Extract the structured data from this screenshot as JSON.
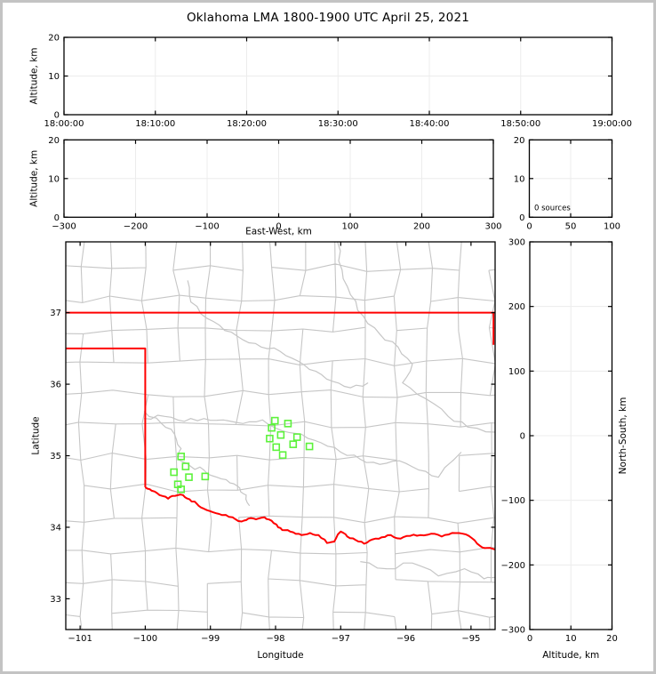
{
  "title": "Oklahoma LMA 1800-1900 UTC April 25, 2021",
  "colors": {
    "background": "#ffffff",
    "frame": "#c3c3c3",
    "axis": "#000000",
    "grid": "#ececec",
    "county": "#c6c6c6",
    "river": "#c6c6c6",
    "state_border": "#ff0000",
    "station": "#5df23c"
  },
  "chart_data": [
    {
      "id": "time-height-panel",
      "type": "scatter",
      "description": "Source altitude vs time, empty (0 sources)",
      "xlim": [
        0,
        3600
      ],
      "xticks": {
        "values": [
          0,
          600,
          1200,
          1800,
          2400,
          3000,
          3600
        ],
        "labels": [
          "18:00:00",
          "18:10:00",
          "18:20:00",
          "18:30:00",
          "18:40:00",
          "18:50:00",
          "19:00:00"
        ]
      },
      "ylabel": "Altitude, km",
      "ylim": [
        0,
        20
      ],
      "yticks": {
        "values": [
          0,
          10,
          20
        ],
        "labels": [
          "0",
          "10",
          "20"
        ]
      },
      "points": []
    },
    {
      "id": "ew-height-panel",
      "type": "scatter",
      "description": "Source altitude vs east-west distance, empty",
      "xlabel": "East-West, km",
      "xlim": [
        -300,
        300
      ],
      "xticks": {
        "values": [
          -300,
          -200,
          -100,
          0,
          100,
          200,
          300
        ],
        "labels": [
          "−300",
          "−200",
          "−100",
          "0",
          "100",
          "200",
          "300"
        ]
      },
      "ylabel": "Altitude, km",
      "ylim": [
        0,
        20
      ],
      "yticks": {
        "values": [
          0,
          10,
          20
        ],
        "labels": [
          "0",
          "10",
          "20"
        ]
      },
      "points": []
    },
    {
      "id": "altitude-histogram-panel",
      "type": "histogram",
      "description": "Altitude histogram of sources, empty",
      "annotation": "0 sources",
      "xlim": [
        0,
        100
      ],
      "xticks": {
        "values": [
          0,
          50,
          100
        ],
        "labels": [
          "0",
          "50",
          "100"
        ]
      },
      "ylim": [
        0,
        20
      ],
      "yticks": {
        "values": [
          0,
          10,
          20
        ],
        "labels": [
          "0",
          "10",
          "20"
        ]
      },
      "values": []
    },
    {
      "id": "plan-view-map-panel",
      "type": "map-scatter",
      "description": "Plan view map of Oklahoma with LMA station locations",
      "xlabel": "Longitude",
      "ylabel": "Latitude",
      "xlim": [
        -101.22,
        -94.63
      ],
      "ylim": [
        32.57,
        37.99
      ],
      "xticks": {
        "values": [
          -101,
          -100,
          -99,
          -98,
          -97,
          -96,
          -95
        ],
        "labels": [
          "−101",
          "−100",
          "−99",
          "−98",
          "−97",
          "−96",
          "−95"
        ]
      },
      "yticks": {
        "values": [
          33,
          34,
          35,
          36,
          37
        ],
        "labels": [
          "33",
          "34",
          "35",
          "36",
          "37"
        ]
      },
      "stations": [
        [
          -98.01,
          35.49
        ],
        [
          -97.81,
          35.45
        ],
        [
          -98.06,
          35.39
        ],
        [
          -97.92,
          35.29
        ],
        [
          -98.09,
          35.24
        ],
        [
          -97.67,
          35.26
        ],
        [
          -97.99,
          35.12
        ],
        [
          -97.73,
          35.16
        ],
        [
          -97.48,
          35.13
        ],
        [
          -97.89,
          35.01
        ],
        [
          -99.45,
          34.99
        ],
        [
          -99.38,
          34.85
        ],
        [
          -99.56,
          34.77
        ],
        [
          -99.33,
          34.7
        ],
        [
          -99.08,
          34.71
        ],
        [
          -99.5,
          34.6
        ],
        [
          -99.45,
          34.53
        ]
      ],
      "state_border": {
        "kansas_border": [
          [
            -101.22,
            37.0
          ],
          [
            -94.63,
            37.0
          ]
        ],
        "missouri_border": [
          [
            -94.655,
            37.0
          ],
          [
            -94.655,
            36.55
          ]
        ],
        "panhandle_border": [
          [
            -101.22,
            36.5
          ],
          [
            -100.0,
            36.5
          ],
          [
            -100.0,
            34.56
          ]
        ],
        "red_river_border": [
          [
            -100.0,
            34.56
          ],
          [
            -99.9,
            34.51
          ],
          [
            -99.78,
            34.45
          ],
          [
            -99.65,
            34.4
          ],
          [
            -99.54,
            34.44
          ],
          [
            -99.42,
            34.45
          ],
          [
            -99.32,
            34.39
          ],
          [
            -99.21,
            34.33
          ],
          [
            -99.1,
            34.26
          ],
          [
            -98.96,
            34.21
          ],
          [
            -98.82,
            34.17
          ],
          [
            -98.66,
            34.14
          ],
          [
            -98.52,
            34.08
          ],
          [
            -98.42,
            34.12
          ],
          [
            -98.3,
            34.11
          ],
          [
            -98.17,
            34.14
          ],
          [
            -98.06,
            34.09
          ],
          [
            -97.96,
            34.0
          ],
          [
            -97.86,
            33.96
          ],
          [
            -97.73,
            33.93
          ],
          [
            -97.6,
            33.89
          ],
          [
            -97.47,
            33.92
          ],
          [
            -97.34,
            33.89
          ],
          [
            -97.21,
            33.78
          ],
          [
            -97.1,
            33.8
          ],
          [
            -97.0,
            33.94
          ],
          [
            -96.9,
            33.87
          ],
          [
            -96.77,
            33.82
          ],
          [
            -96.64,
            33.77
          ],
          [
            -96.51,
            33.83
          ],
          [
            -96.37,
            33.86
          ],
          [
            -96.23,
            33.89
          ],
          [
            -96.08,
            33.84
          ],
          [
            -95.93,
            33.88
          ],
          [
            -95.78,
            33.89
          ],
          [
            -95.61,
            33.91
          ],
          [
            -95.45,
            33.87
          ],
          [
            -95.29,
            33.92
          ],
          [
            -95.13,
            33.91
          ],
          [
            -94.99,
            33.85
          ],
          [
            -94.86,
            33.74
          ],
          [
            -94.75,
            33.71
          ],
          [
            -94.63,
            33.69
          ]
        ]
      },
      "rivers": [
        [
          [
            -99.35,
            37.45
          ],
          [
            -99.3,
            37.15
          ],
          [
            -99.05,
            36.92
          ],
          [
            -98.78,
            36.75
          ],
          [
            -98.5,
            36.62
          ],
          [
            -98.22,
            36.52
          ],
          [
            -97.93,
            36.46
          ],
          [
            -97.65,
            36.32
          ],
          [
            -97.38,
            36.18
          ],
          [
            -97.12,
            36.04
          ],
          [
            -96.85,
            35.95
          ],
          [
            -96.58,
            36.02
          ]
        ],
        [
          [
            -97.05,
            37.99
          ],
          [
            -96.98,
            37.6
          ],
          [
            -96.85,
            37.25
          ],
          [
            -96.65,
            36.95
          ],
          [
            -96.4,
            36.7
          ],
          [
            -96.12,
            36.52
          ],
          [
            -95.9,
            36.28
          ],
          [
            -96.05,
            36.02
          ],
          [
            -95.7,
            35.8
          ],
          [
            -95.35,
            35.55
          ],
          [
            -95.05,
            35.4
          ],
          [
            -94.63,
            35.33
          ]
        ],
        [
          [
            -100.02,
            35.52
          ],
          [
            -99.7,
            35.55
          ],
          [
            -99.4,
            35.48
          ],
          [
            -99.1,
            35.52
          ],
          [
            -98.8,
            35.5
          ],
          [
            -98.5,
            35.45
          ],
          [
            -98.2,
            35.5
          ],
          [
            -97.9,
            35.35
          ],
          [
            -97.6,
            35.3
          ],
          [
            -97.3,
            35.18
          ],
          [
            -97.0,
            35.05
          ],
          [
            -96.7,
            34.95
          ],
          [
            -96.4,
            34.88
          ],
          [
            -96.1,
            34.93
          ],
          [
            -95.8,
            34.8
          ],
          [
            -95.5,
            34.7
          ],
          [
            -95.15,
            35.05
          ]
        ],
        [
          [
            -100.02,
            35.62
          ],
          [
            -99.75,
            35.45
          ],
          [
            -99.55,
            35.3
          ],
          [
            -99.45,
            35.1
          ],
          [
            -99.5,
            34.95
          ],
          [
            -99.3,
            34.85
          ],
          [
            -99.1,
            34.8
          ],
          [
            -98.9,
            34.7
          ],
          [
            -98.7,
            34.62
          ],
          [
            -98.55,
            34.55
          ],
          [
            -98.45,
            34.45
          ],
          [
            -98.4,
            34.3
          ]
        ],
        [
          [
            -96.7,
            33.52
          ],
          [
            -96.3,
            33.42
          ],
          [
            -95.9,
            33.5
          ],
          [
            -95.5,
            33.32
          ],
          [
            -95.1,
            33.42
          ],
          [
            -94.8,
            33.28
          ],
          [
            -94.63,
            33.3
          ]
        ]
      ],
      "county_grid": {
        "seed": 11,
        "dlon": 0.485,
        "dlat": 0.44,
        "jitter": 0.055,
        "skip": 0.13
      }
    },
    {
      "id": "ns-height-panel",
      "type": "scatter",
      "description": "Source north-south distance vs altitude, empty",
      "xlabel": "Altitude, km",
      "xlim": [
        0,
        20
      ],
      "xticks": {
        "values": [
          0,
          10,
          20
        ],
        "labels": [
          "0",
          "10",
          "20"
        ]
      },
      "ylabel": "North-South, km",
      "ylim": [
        -300,
        300
      ],
      "yticks": {
        "values": [
          -300,
          -200,
          -100,
          0,
          100,
          200,
          300
        ],
        "labels": [
          "−300",
          "−200",
          "−100",
          "0",
          "100",
          "200",
          "300"
        ]
      },
      "points": []
    }
  ]
}
